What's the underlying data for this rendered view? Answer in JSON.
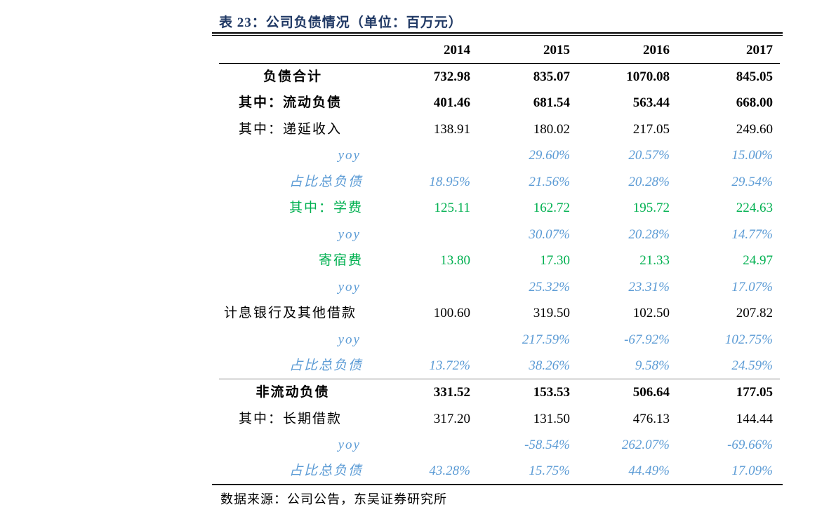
{
  "intro_line_fragment": "",
  "caption": "表 23：公司负债情况（单位：百万元）",
  "columns": [
    "",
    "2014",
    "2015",
    "2016",
    "2017"
  ],
  "rows": [
    {
      "label": "负债合计",
      "values": [
        "732.98",
        "835.07",
        "1070.08",
        "845.05"
      ]
    },
    {
      "label": "其中：流动负债",
      "values": [
        "401.46",
        "681.54",
        "563.44",
        "668.00"
      ]
    },
    {
      "label": "其中：递延收入",
      "values": [
        "138.91",
        "180.02",
        "217.05",
        "249.60"
      ]
    },
    {
      "label": "yoy",
      "values": [
        "",
        "29.60%",
        "20.57%",
        "15.00%"
      ]
    },
    {
      "label": "占比总负债",
      "values": [
        "18.95%",
        "21.56%",
        "20.28%",
        "29.54%"
      ]
    },
    {
      "label": "其中：学费",
      "values": [
        "125.11",
        "162.72",
        "195.72",
        "224.63"
      ]
    },
    {
      "label": "yoy",
      "values": [
        "",
        "30.07%",
        "20.28%",
        "14.77%"
      ]
    },
    {
      "label": "寄宿费",
      "values": [
        "13.80",
        "17.30",
        "21.33",
        "24.97"
      ]
    },
    {
      "label": "yoy",
      "values": [
        "",
        "25.32%",
        "23.31%",
        "17.07%"
      ]
    },
    {
      "label": "计息银行及其他借款",
      "values": [
        "100.60",
        "319.50",
        "102.50",
        "207.82"
      ]
    },
    {
      "label": "yoy",
      "values": [
        "",
        "217.59%",
        "-67.92%",
        "102.75%"
      ]
    },
    {
      "label": "占比总负债",
      "values": [
        "13.72%",
        "38.26%",
        "9.58%",
        "24.59%"
      ]
    },
    {
      "label": "非流动负债",
      "values": [
        "331.52",
        "153.53",
        "506.64",
        "177.05"
      ]
    },
    {
      "label": "其中：长期借款",
      "values": [
        "317.20",
        "131.50",
        "476.13",
        "144.44"
      ]
    },
    {
      "label": "yoy",
      "values": [
        "",
        "-58.54%",
        "262.07%",
        "-69.66%"
      ]
    },
    {
      "label": "占比总负债",
      "values": [
        "43.28%",
        "15.75%",
        "44.49%",
        "17.09%"
      ]
    }
  ],
  "source": "数据来源：公司公告，东吴证券研究所",
  "colors": {
    "caption": "#1f3864",
    "yoy": "#5b9bd5",
    "highlight": "#00b050"
  }
}
